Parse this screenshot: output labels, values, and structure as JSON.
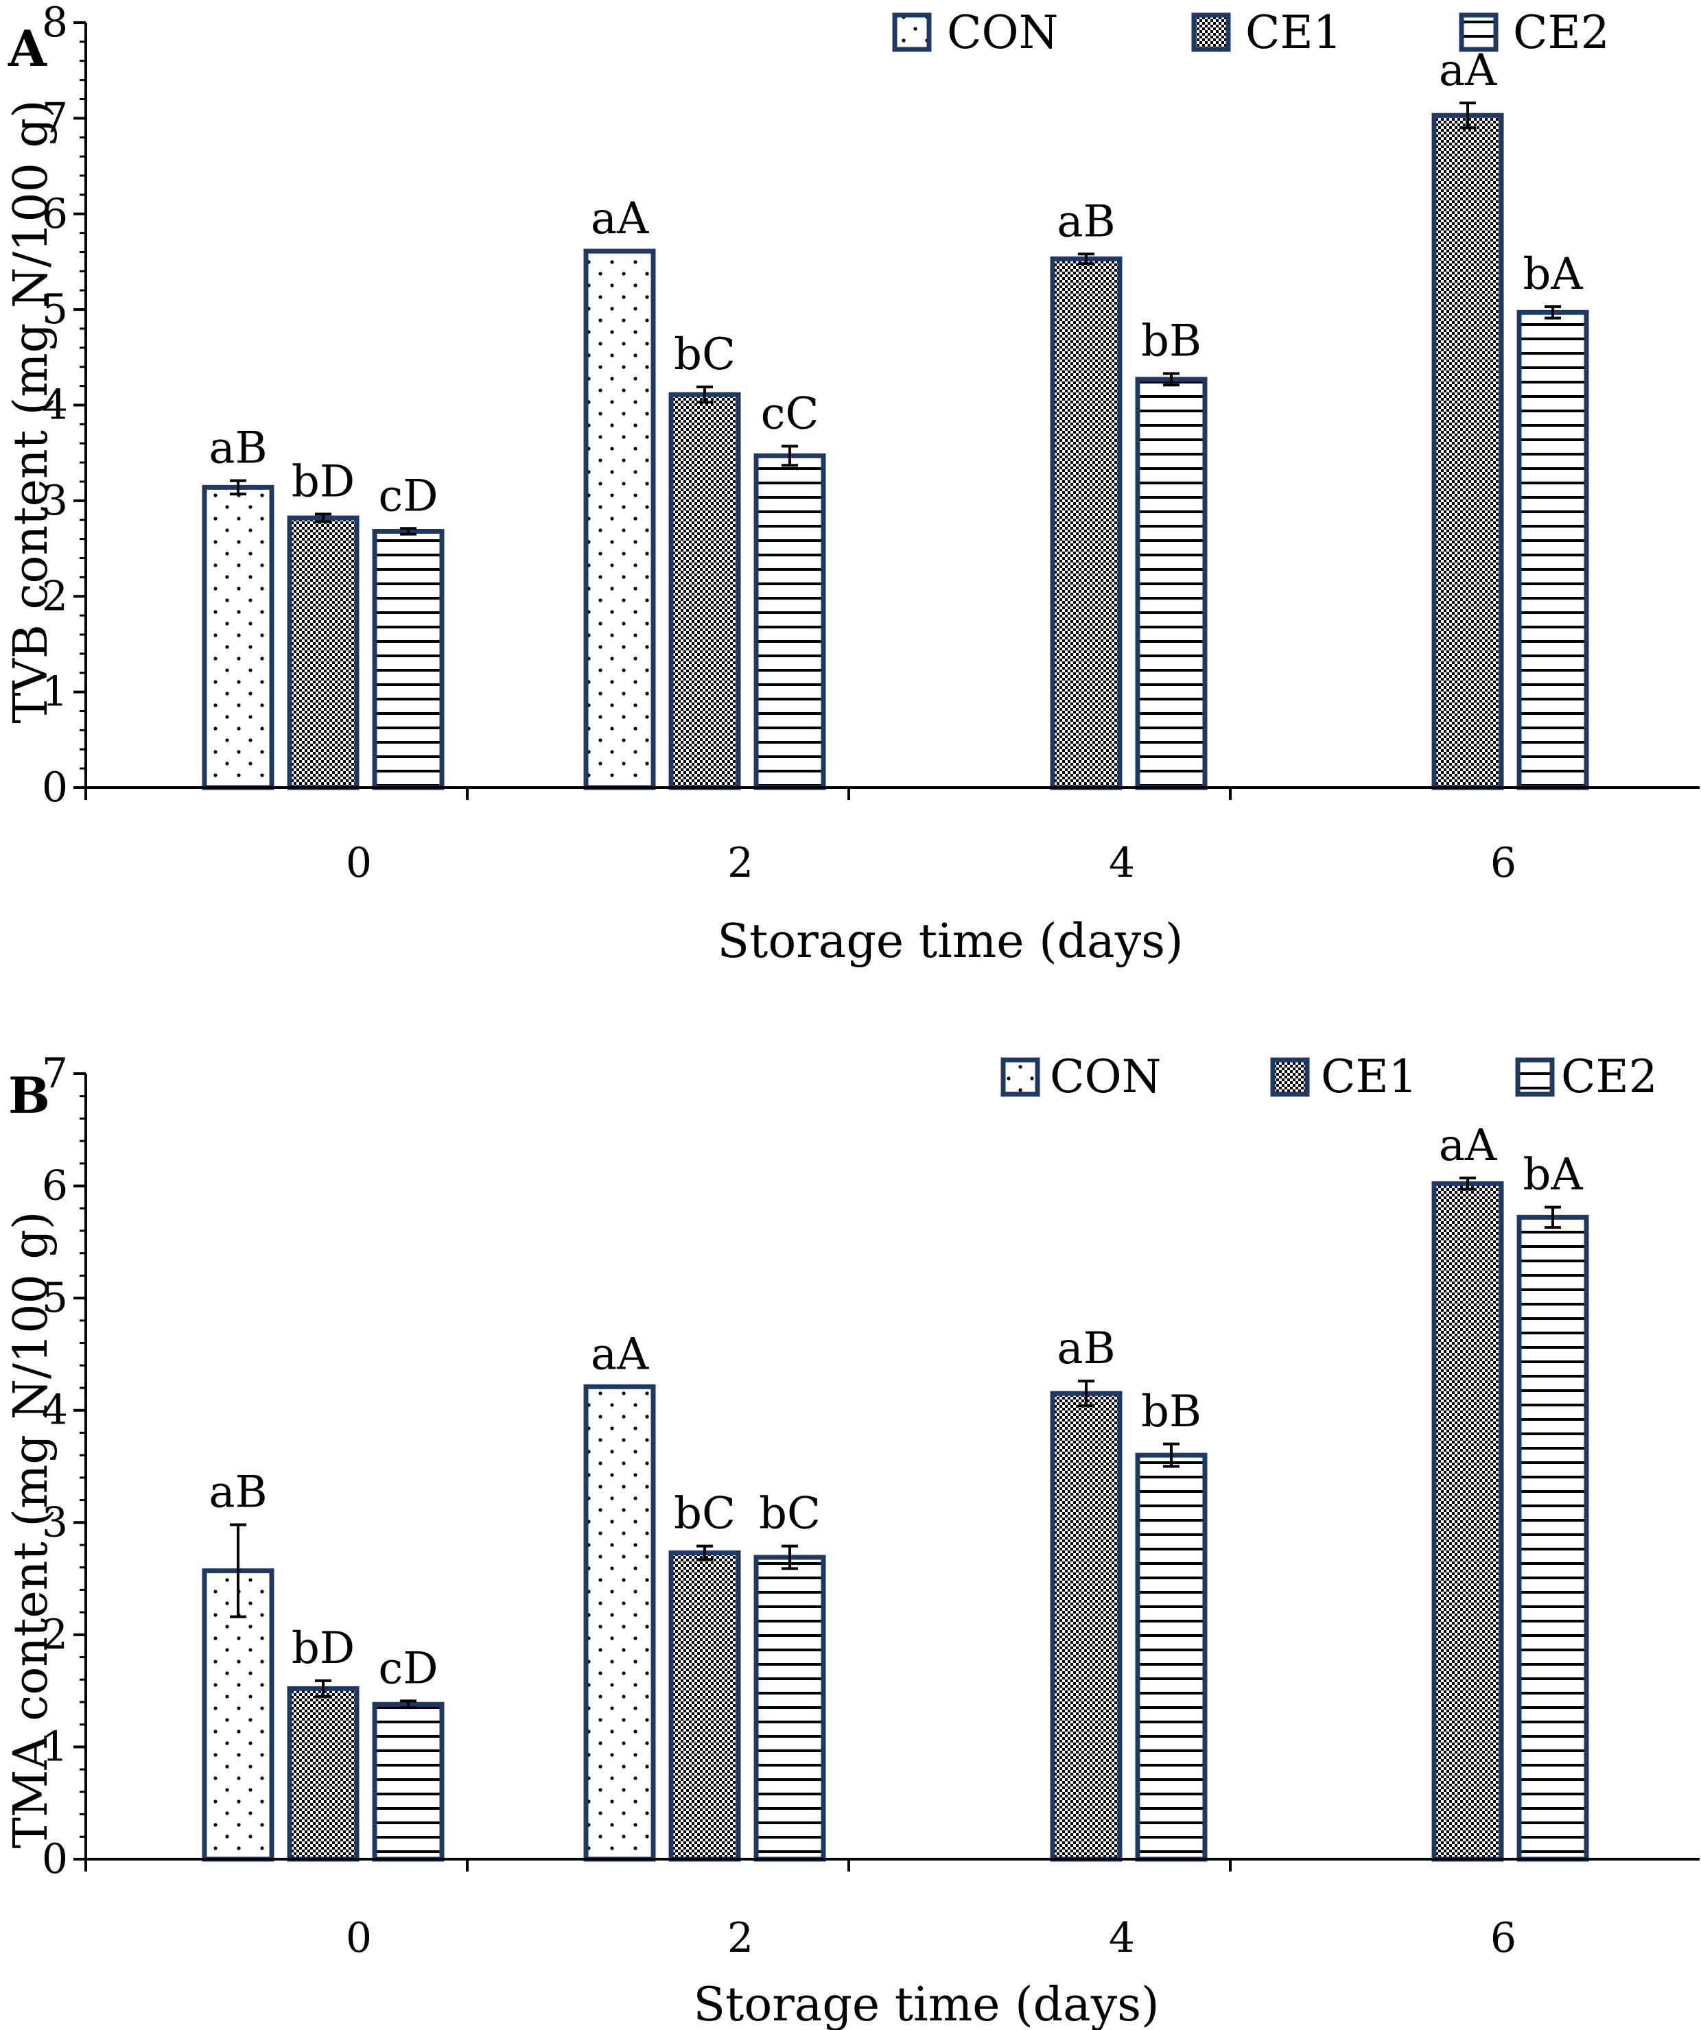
{
  "figure": {
    "panels": [
      "A",
      "B"
    ]
  },
  "legend": {
    "items": [
      {
        "key": "CON",
        "label": "CON"
      },
      {
        "key": "CE1",
        "label": "CE1"
      },
      {
        "key": "CE2",
        "label": "CE2"
      }
    ]
  },
  "colors": {
    "bar_outline": "#1f3864",
    "axis": "#000000",
    "background": "#ffffff"
  },
  "chart_data": [
    {
      "type": "bar",
      "panel_label": "A",
      "title": "",
      "xlabel": "Storage time (days)",
      "ylabel": "TVB content (mg N/100 g)",
      "ylim": [
        0,
        8
      ],
      "yticks": [
        0,
        1,
        2,
        3,
        4,
        5,
        6,
        7,
        8
      ],
      "categories": [
        "0",
        "2",
        "4",
        "6"
      ],
      "legend_position": "top",
      "series": [
        {
          "name": "CON",
          "pattern": "dots",
          "values": [
            3.14,
            5.61,
            null,
            null
          ],
          "errors": [
            0.07,
            0.0,
            null,
            null
          ],
          "labels": [
            "aB",
            "aA",
            null,
            null
          ]
        },
        {
          "name": "CE1",
          "pattern": "checker",
          "values": [
            2.82,
            4.11,
            5.53,
            7.03
          ],
          "errors": [
            0.04,
            0.08,
            0.05,
            0.13
          ],
          "labels": [
            "bD",
            "bC",
            "aB",
            "aA"
          ]
        },
        {
          "name": "CE2",
          "pattern": "hlines",
          "values": [
            2.68,
            3.47,
            4.27,
            4.97
          ],
          "errors": [
            0.03,
            0.1,
            0.06,
            0.06
          ],
          "labels": [
            "cD",
            "cC",
            "bB",
            "bA"
          ]
        }
      ]
    },
    {
      "type": "bar",
      "panel_label": "B",
      "title": "",
      "xlabel": "Storage time (days)",
      "ylabel": "TMA content (mg N/100 g)",
      "ylim": [
        0,
        7
      ],
      "yticks": [
        0,
        1,
        2,
        3,
        4,
        5,
        6,
        7
      ],
      "categories": [
        "0",
        "2",
        "4",
        "6"
      ],
      "legend_position": "top-right",
      "series": [
        {
          "name": "CON",
          "pattern": "dots",
          "values": [
            2.57,
            4.21,
            null,
            null
          ],
          "errors": [
            0.41,
            0.0,
            null,
            null
          ],
          "labels": [
            "aB",
            "aA",
            null,
            null
          ]
        },
        {
          "name": "CE1",
          "pattern": "checker",
          "values": [
            1.52,
            2.73,
            4.15,
            6.02
          ],
          "errors": [
            0.07,
            0.06,
            0.11,
            0.05
          ],
          "labels": [
            "bD",
            "bC",
            "aB",
            "aA"
          ]
        },
        {
          "name": "CE2",
          "pattern": "hlines",
          "values": [
            1.38,
            2.69,
            3.6,
            5.72
          ],
          "errors": [
            0.03,
            0.1,
            0.1,
            0.09
          ],
          "labels": [
            "cD",
            "bC",
            "bB",
            "bA"
          ]
        }
      ]
    }
  ]
}
